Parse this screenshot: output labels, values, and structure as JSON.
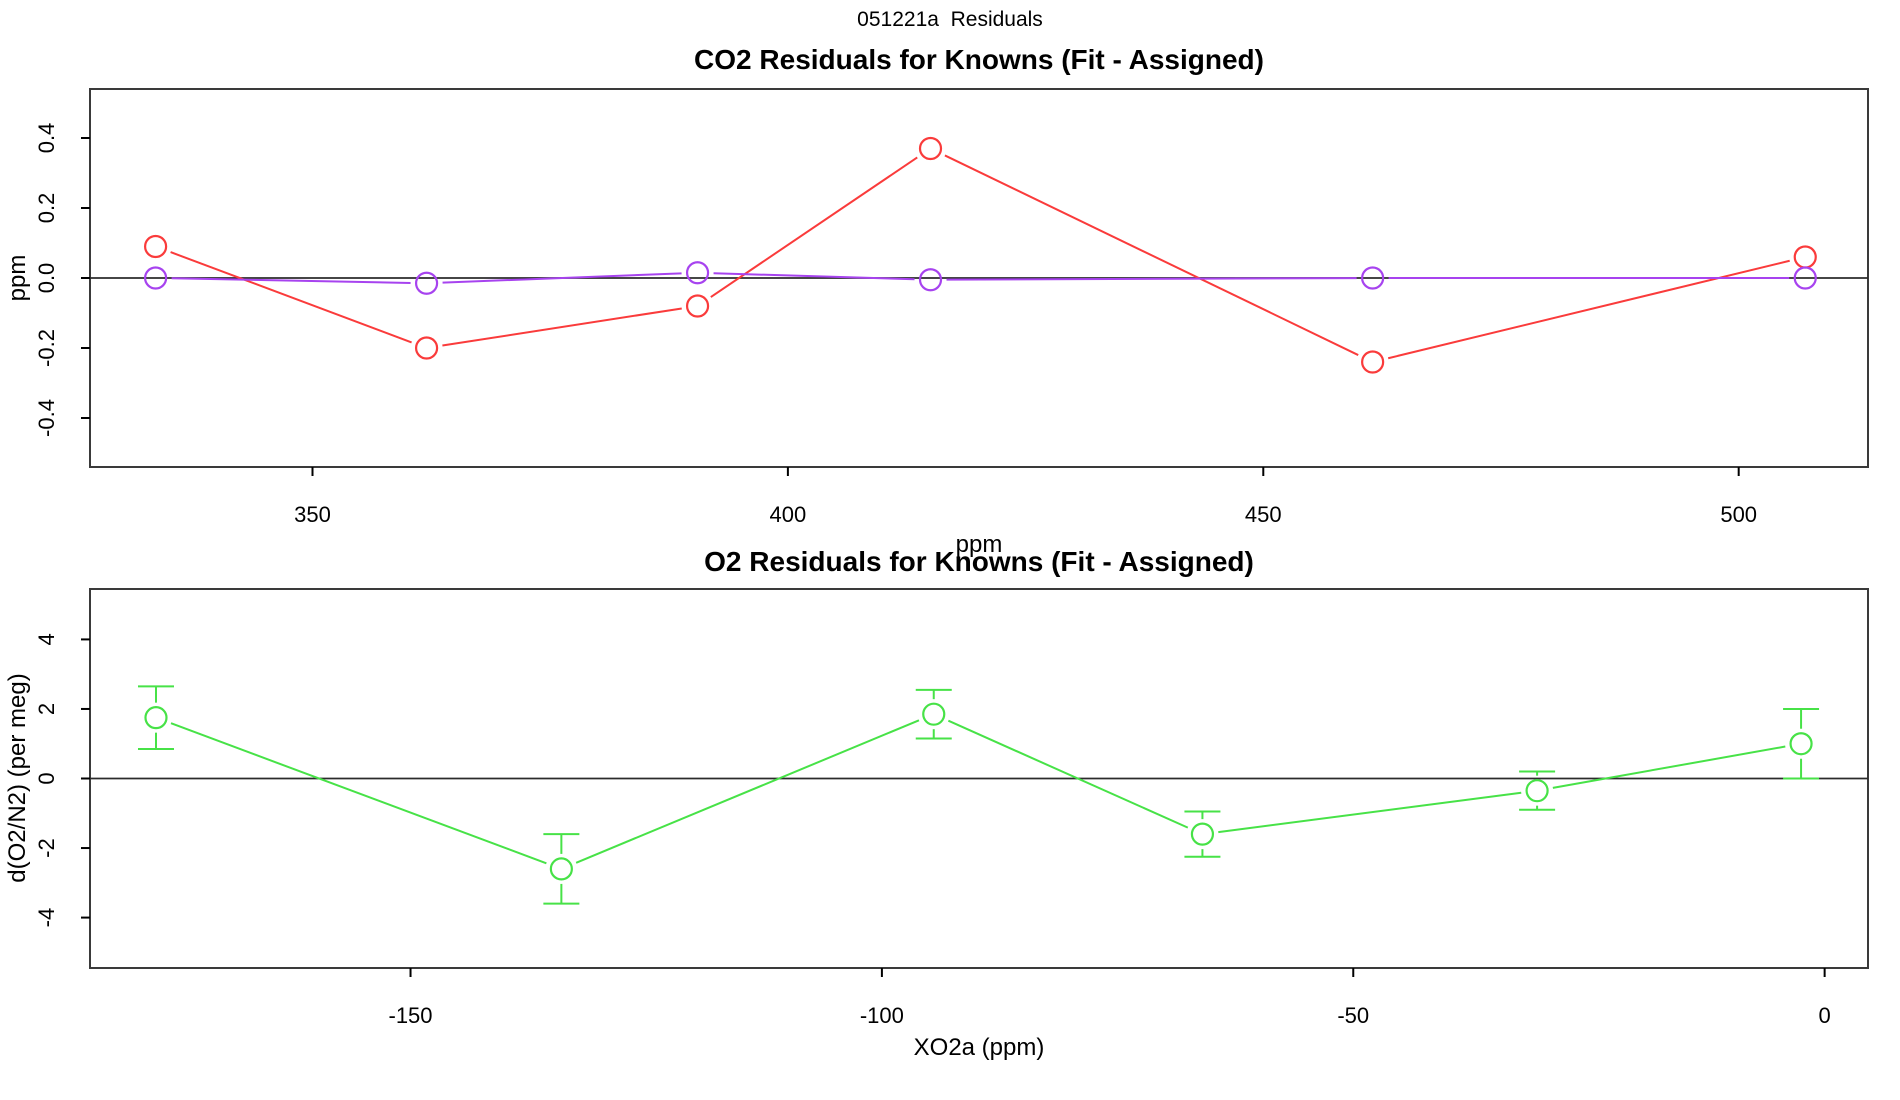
{
  "page": {
    "title": "051221a  Residuals"
  },
  "colors": {
    "red": "#fa3b3b",
    "purple": "#a743ef",
    "green": "#47e247",
    "axis_box": "#3a3a3a",
    "zero_line": "#2b2b2b",
    "tick": "#000000",
    "text": "#000000"
  },
  "chart_data": [
    {
      "type": "line",
      "title": "CO2 Residuals for Knowns (Fit - Assigned)",
      "xlabel": "ppm",
      "ylabel": "ppm",
      "xlim": [
        326.6,
        513.6
      ],
      "ylim": [
        -0.54,
        0.54
      ],
      "xticks": [
        350,
        400,
        450,
        500
      ],
      "xtick_labels": [
        "350",
        "400",
        "450",
        "500"
      ],
      "yticks": [
        -0.4,
        -0.2,
        0,
        0.2,
        0.4
      ],
      "ytick_labels": [
        "-0.4",
        "-0.2",
        "0.0",
        "0.2",
        "0.4"
      ],
      "zero_line": true,
      "grid": false,
      "legend": "none",
      "marker": "open-circle",
      "x": [
        333.5,
        362,
        390.5,
        415,
        461.5,
        507
      ],
      "series": [
        {
          "name": "co2-residual-red",
          "color": "red",
          "values": [
            0.09,
            -0.2,
            -0.08,
            0.37,
            -0.24,
            0.06
          ]
        },
        {
          "name": "co2-residual-purple",
          "color": "purple",
          "values": [
            0,
            -0.015,
            0.015,
            -0.005,
            0,
            0
          ]
        }
      ]
    },
    {
      "type": "line",
      "title": "O2 Residuals for Knowns (Fit - Assigned)",
      "xlabel": "XO2a (ppm)",
      "ylabel": "d(O2/N2) (per meg)",
      "xlim": [
        -184,
        4.6
      ],
      "ylim": [
        -5.45,
        5.45
      ],
      "xticks": [
        -150,
        -100,
        -50,
        0
      ],
      "xtick_labels": [
        "-150",
        "-100",
        "-50",
        "0"
      ],
      "yticks": [
        -4,
        -2,
        0,
        2,
        4
      ],
      "ytick_labels": [
        "-4",
        "-2",
        "0",
        "2",
        "4"
      ],
      "zero_line": true,
      "grid": false,
      "legend": "none",
      "marker": "open-circle",
      "x": [
        -177,
        -134,
        -94.5,
        -66,
        -30.5,
        -2.5
      ],
      "series": [
        {
          "name": "o2-residual-green",
          "color": "green",
          "values": [
            1.75,
            -2.6,
            1.85,
            -1.6,
            -0.35,
            1.0
          ],
          "errors": [
            0.9,
            1.0,
            0.7,
            0.65,
            0.55,
            1.0
          ]
        }
      ]
    }
  ]
}
